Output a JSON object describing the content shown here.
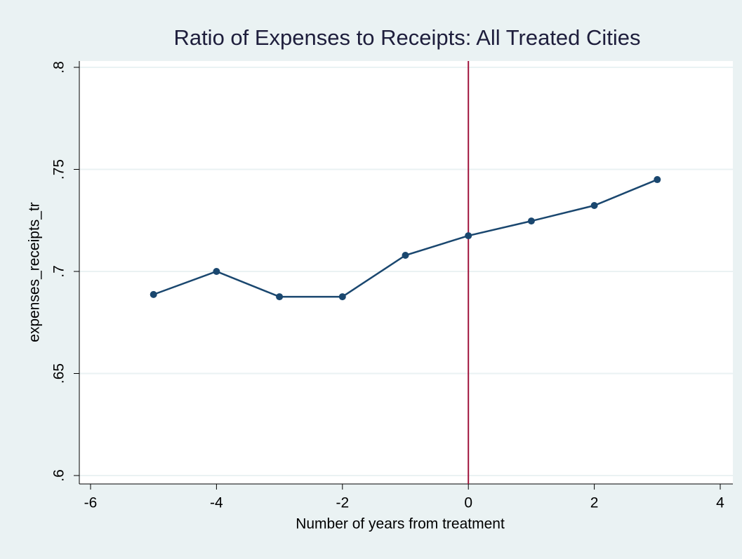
{
  "chart_data": {
    "type": "line",
    "title": "Ratio of Expenses to Receipts: All Treated Cities",
    "x_label": "Number of years from treatment",
    "y_label": "expenses_receipts_tr",
    "x": [
      -5,
      -4,
      -3,
      -2,
      -1,
      0,
      1,
      2,
      3
    ],
    "series": [
      {
        "name": "expenses_receipts_tr",
        "color": "#1a476f",
        "values": [
          0.6887,
          0.7,
          0.6876,
          0.6876,
          0.7079,
          0.7175,
          0.7247,
          0.7323,
          0.745
        ]
      }
    ],
    "xlim": [
      -6,
      4
    ],
    "xticks": [
      -6,
      -4,
      -2,
      0,
      2,
      4
    ],
    "ylim": [
      0.6,
      0.8
    ],
    "yticks": [
      {
        "value": 0.6,
        "label": ".6"
      },
      {
        "value": 0.65,
        "label": ".65"
      },
      {
        "value": 0.7,
        "label": ".7"
      },
      {
        "value": 0.75,
        "label": ".75"
      },
      {
        "value": 0.8,
        "label": ".8"
      }
    ],
    "grid": true,
    "xline": 0,
    "xline_color": "#a0143c"
  }
}
